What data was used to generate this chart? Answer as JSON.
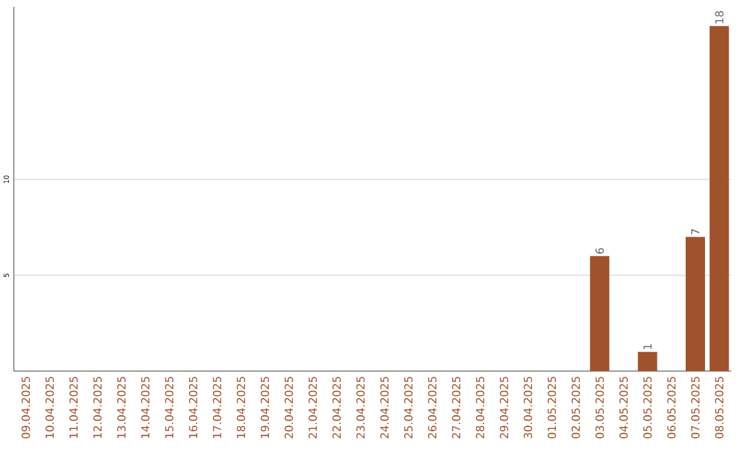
{
  "chart_data": {
    "type": "bar",
    "categories": [
      "09.04.2025",
      "10.04.2025",
      "11.04.2025",
      "12.04.2025",
      "13.04.2025",
      "14.04.2025",
      "15.04.2025",
      "16.04.2025",
      "17.04.2025",
      "18.04.2025",
      "19.04.2025",
      "20.04.2025",
      "21.04.2025",
      "22.04.2025",
      "23.04.2025",
      "24.04.2025",
      "25.04.2025",
      "26.04.2025",
      "27.04.2025",
      "28.04.2025",
      "29.04.2025",
      "30.04.2025",
      "01.05.2025",
      "02.05.2025",
      "03.05.2025",
      "04.05.2025",
      "05.05.2025",
      "06.05.2025",
      "07.05.2025",
      "08.05.2025"
    ],
    "values": [
      0,
      0,
      0,
      0,
      0,
      0,
      0,
      0,
      0,
      0,
      0,
      0,
      0,
      0,
      0,
      0,
      0,
      0,
      0,
      0,
      0,
      0,
      0,
      0,
      6,
      0,
      1,
      0,
      7,
      18
    ],
    "value_labels": [
      null,
      null,
      null,
      null,
      null,
      null,
      null,
      null,
      null,
      null,
      null,
      null,
      null,
      null,
      null,
      null,
      null,
      null,
      null,
      null,
      null,
      null,
      null,
      null,
      "6",
      null,
      "1",
      null,
      "7",
      "18"
    ],
    "color": "#a0522d",
    "ylim": [
      0,
      19
    ],
    "yticks": [
      5,
      10
    ],
    "grid": "y"
  }
}
